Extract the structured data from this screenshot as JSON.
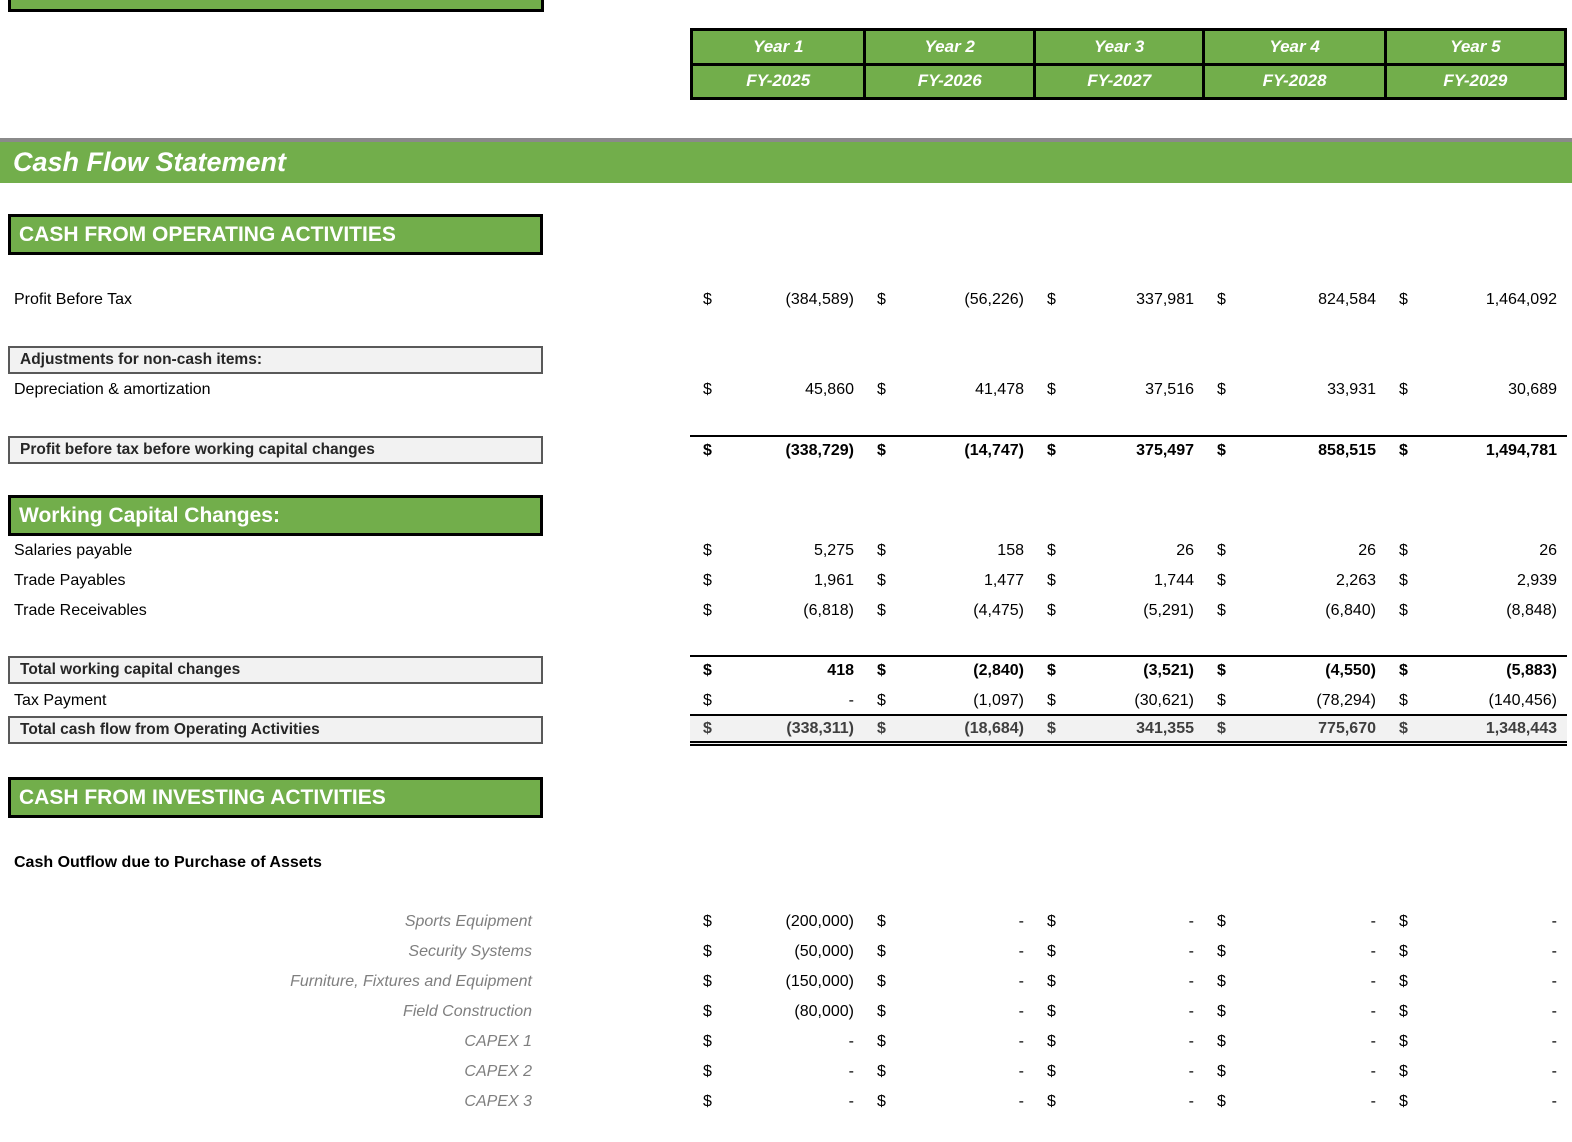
{
  "currency": "$",
  "colors": {
    "green": "#72AE4B",
    "gray_fill": "#F2F2F2",
    "box_border": "#595959",
    "title_topline": "#8A8A8A",
    "asset_label_gray": "#7F7F7F"
  },
  "title": "Cash Flow Statement",
  "header": {
    "years": [
      "Year 1",
      "Year 2",
      "Year 3",
      "Year 4",
      "Year 5"
    ],
    "fiscal_years": [
      "FY-2025",
      "FY-2026",
      "FY-2027",
      "FY-2028",
      "FY-2029"
    ]
  },
  "sections": {
    "operating": "CASH FROM OPERATING ACTIVITIES",
    "working_capital": "Working Capital Changes:",
    "investing": "CASH FROM INVESTING ACTIVITIES"
  },
  "rows": {
    "profit_before_tax": {
      "label": "Profit Before Tax",
      "values": [
        "(384,589)",
        "(56,226)",
        "337,981",
        "824,584",
        "1,464,092"
      ]
    },
    "adjustments_header": {
      "label": "Adjustments for non-cash items:"
    },
    "depreciation": {
      "label": "Depreciation & amortization",
      "values": [
        "45,860",
        "41,478",
        "37,516",
        "33,931",
        "30,689"
      ]
    },
    "pbt_before_wc": {
      "label": "Profit before tax before working capital changes",
      "values": [
        "(338,729)",
        "(14,747)",
        "375,497",
        "858,515",
        "1,494,781"
      ]
    },
    "salaries_payable": {
      "label": "Salaries payable",
      "values": [
        "5,275",
        "158",
        "26",
        "26",
        "26"
      ]
    },
    "trade_payables": {
      "label": "Trade Payables",
      "values": [
        "1,961",
        "1,477",
        "1,744",
        "2,263",
        "2,939"
      ]
    },
    "trade_receivables": {
      "label": "Trade Receivables",
      "values": [
        "(6,818)",
        "(4,475)",
        "(5,291)",
        "(6,840)",
        "(8,848)"
      ]
    },
    "total_wc_changes": {
      "label": "Total working capital changes",
      "values": [
        "418",
        "(2,840)",
        "(3,521)",
        "(4,550)",
        "(5,883)"
      ]
    },
    "tax_payment": {
      "label": "Tax Payment",
      "values": [
        "-",
        "(1,097)",
        "(30,621)",
        "(78,294)",
        "(140,456)"
      ]
    },
    "total_cf_operating": {
      "label": "Total cash flow from Operating Activities",
      "values": [
        "(338,311)",
        "(18,684)",
        "341,355",
        "775,670",
        "1,348,443"
      ]
    },
    "cash_outflow_heading": {
      "label": "Cash Outflow due to Purchase of Assets"
    },
    "sports_equipment": {
      "label": "Sports Equipment",
      "values": [
        "(200,000)",
        "-",
        "-",
        "-",
        "-"
      ]
    },
    "security_systems": {
      "label": "Security Systems",
      "values": [
        "(50,000)",
        "-",
        "-",
        "-",
        "-"
      ]
    },
    "furniture_fixtures": {
      "label": "Furniture, Fixtures and Equipment",
      "values": [
        "(150,000)",
        "-",
        "-",
        "-",
        "-"
      ]
    },
    "field_construction": {
      "label": "Field Construction",
      "values": [
        "(80,000)",
        "-",
        "-",
        "-",
        "-"
      ]
    },
    "capex_1": {
      "label": "CAPEX 1",
      "values": [
        "-",
        "-",
        "-",
        "-",
        "-"
      ]
    },
    "capex_2": {
      "label": "CAPEX 2",
      "values": [
        "-",
        "-",
        "-",
        "-",
        "-"
      ]
    },
    "capex_3": {
      "label": "CAPEX 3",
      "values": [
        "-",
        "-",
        "-",
        "-",
        "-"
      ]
    }
  }
}
